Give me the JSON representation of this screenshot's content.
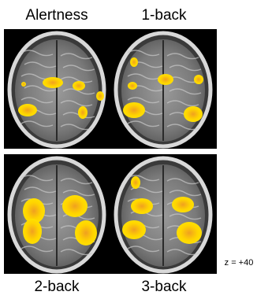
{
  "panels": [
    {
      "label": "Alertness"
    },
    {
      "label": "1-back"
    },
    {
      "label": "2-back"
    },
    {
      "label": "3-back"
    }
  ],
  "annotation": "z = +40"
}
